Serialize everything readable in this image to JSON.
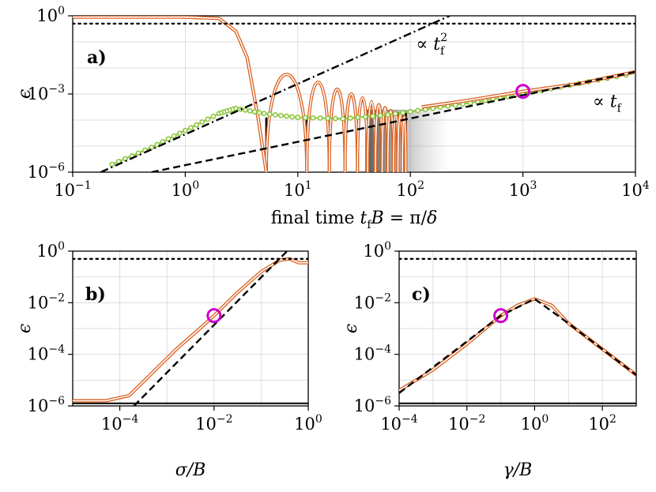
{
  "chart_data": [
    {
      "id": "a",
      "type": "line",
      "panel_label": "a)",
      "xscale": "log",
      "yscale": "log",
      "xlim_exp": [
        -1,
        4
      ],
      "ylim_exp": [
        -6,
        0
      ],
      "grid": true,
      "xlabel": "final time t_f B = π/δ",
      "ylabel": "ε",
      "xticks": [
        {
          "base": "10",
          "exp": "−1"
        },
        {
          "base": "10",
          "exp": "0"
        },
        {
          "base": "10",
          "exp": "1"
        },
        {
          "base": "10",
          "exp": "2"
        },
        {
          "base": "10",
          "exp": "3"
        },
        {
          "base": "10",
          "exp": "4"
        }
      ],
      "yticks": [
        {
          "base": "10",
          "exp": "−6"
        },
        {
          "base": "10",
          "exp": "−3"
        },
        {
          "base": "10",
          "exp": "0"
        }
      ],
      "annotations": [
        {
          "text": "∝ t_f^2"
        },
        {
          "text": "∝ t_f"
        }
      ],
      "dotted_ref_log10": -0.3,
      "series": [
        {
          "name": "landau-zener-orange",
          "color": "#d95f1e",
          "points": [
            [
              -1,
              -0.05
            ],
            [
              0,
              -0.05
            ],
            [
              0.3,
              -0.1
            ],
            [
              0.45,
              -0.6
            ],
            [
              0.55,
              -1.6
            ],
            [
              0.65,
              -4.0
            ],
            [
              0.72,
              -6.0
            ]
          ]
        },
        {
          "name": "green-markers",
          "color": "#8cc63f",
          "points": [
            [
              -0.65,
              -5.7
            ],
            [
              -0.3,
              -5.05
            ],
            [
              0,
              -4.4
            ],
            [
              0.3,
              -3.75
            ],
            [
              0.45,
              -3.55
            ],
            [
              0.7,
              -3.75
            ],
            [
              1.0,
              -3.9
            ],
            [
              1.4,
              -3.95
            ],
            [
              1.8,
              -3.8
            ],
            [
              2.2,
              -3.55
            ],
            [
              2.6,
              -3.3
            ],
            [
              3.0,
              -3.0
            ],
            [
              3.5,
              -2.6
            ],
            [
              4.0,
              -2.2
            ]
          ]
        },
        {
          "name": "orange-fit",
          "color": "#d95f1e",
          "points": [
            [
              2.1,
              -3.5
            ],
            [
              2.5,
              -3.25
            ],
            [
              3.0,
              -2.9
            ],
            [
              3.5,
              -2.6
            ],
            [
              4.0,
              -2.15
            ]
          ]
        }
      ],
      "reference_lines": [
        {
          "name": "quadratic-fit",
          "style": "dashdot",
          "points": [
            [
              -0.75,
              -6.0
            ],
            [
              2.35,
              0.0
            ]
          ]
        },
        {
          "name": "linear-fit",
          "style": "dashed",
          "points": [
            [
              -0.3,
              -6.0
            ],
            [
              4.0,
              -2.15
            ]
          ]
        }
      ],
      "marker_point_log10": [
        3.0,
        -2.9
      ]
    },
    {
      "id": "b",
      "type": "line",
      "panel_label": "b)",
      "xscale": "log",
      "yscale": "log",
      "xlim_exp": [
        -5,
        0
      ],
      "ylim_exp": [
        -6,
        0
      ],
      "grid": true,
      "xlabel": "σ/B",
      "ylabel": "ε",
      "xticks": [
        {
          "base": "10",
          "exp": "−4"
        },
        {
          "base": "10",
          "exp": "−2"
        },
        {
          "base": "10",
          "exp": "0"
        }
      ],
      "yticks": [
        {
          "base": "10",
          "exp": "−6"
        },
        {
          "base": "10",
          "exp": "−4"
        },
        {
          "base": "10",
          "exp": "−2"
        },
        {
          "base": "10",
          "exp": "0"
        }
      ],
      "dotted_ref_log10": -0.3,
      "solid_ref_log10": -5.9,
      "series": [
        {
          "name": "orange-sigma",
          "color": "#d95f1e",
          "points": [
            [
              -5,
              -5.8
            ],
            [
              -4.3,
              -5.8
            ],
            [
              -3.8,
              -5.6
            ],
            [
              -3.3,
              -4.7
            ],
            [
              -2.8,
              -3.8
            ],
            [
              -2.3,
              -3.0
            ],
            [
              -2.0,
              -2.5
            ],
            [
              -1.5,
              -1.6
            ],
            [
              -1.0,
              -0.8
            ],
            [
              -0.6,
              -0.35
            ],
            [
              -0.4,
              -0.3
            ],
            [
              -0.2,
              -0.45
            ],
            [
              0,
              -0.45
            ]
          ]
        }
      ],
      "reference_lines": [
        {
          "name": "sigma-fit",
          "style": "dashed",
          "points": [
            [
              -3.7,
              -6.0
            ],
            [
              -0.45,
              0.0
            ]
          ]
        }
      ],
      "marker_point_log10": [
        -2.0,
        -2.5
      ]
    },
    {
      "id": "c",
      "type": "line",
      "panel_label": "c)",
      "xscale": "log",
      "yscale": "log",
      "xlim_exp": [
        -4,
        3
      ],
      "ylim_exp": [
        -6,
        0
      ],
      "grid": true,
      "xlabel": "γ/B",
      "ylabel": "ε",
      "xticks": [
        {
          "base": "10",
          "exp": "−4"
        },
        {
          "base": "10",
          "exp": "−2"
        },
        {
          "base": "10",
          "exp": "0"
        },
        {
          "base": "10",
          "exp": "2"
        }
      ],
      "yticks": [
        {
          "base": "10",
          "exp": "−6"
        },
        {
          "base": "10",
          "exp": "−4"
        },
        {
          "base": "10",
          "exp": "−2"
        },
        {
          "base": "10",
          "exp": "0"
        }
      ],
      "dotted_ref_log10": -0.3,
      "solid_ref_log10": -5.9,
      "series": [
        {
          "name": "orange-gamma",
          "color": "#d95f1e",
          "points": [
            [
              -4,
              -5.4
            ],
            [
              -3.0,
              -4.6
            ],
            [
              -2.0,
              -3.6
            ],
            [
              -1.0,
              -2.5
            ],
            [
              -0.5,
              -2.1
            ],
            [
              0,
              -1.85
            ],
            [
              0.5,
              -2.1
            ],
            [
              1.0,
              -2.8
            ],
            [
              2.0,
              -3.8
            ],
            [
              3.0,
              -4.8
            ]
          ]
        }
      ],
      "reference_lines": [
        {
          "name": "gamma-fit",
          "style": "dashed",
          "points": [
            [
              -4,
              -5.5
            ],
            [
              -1.0,
              -2.5
            ],
            [
              0,
              -1.85
            ],
            [
              1.0,
              -2.8
            ],
            [
              3.0,
              -4.8
            ]
          ]
        }
      ],
      "marker_point_log10": [
        -1.0,
        -2.5
      ]
    }
  ]
}
